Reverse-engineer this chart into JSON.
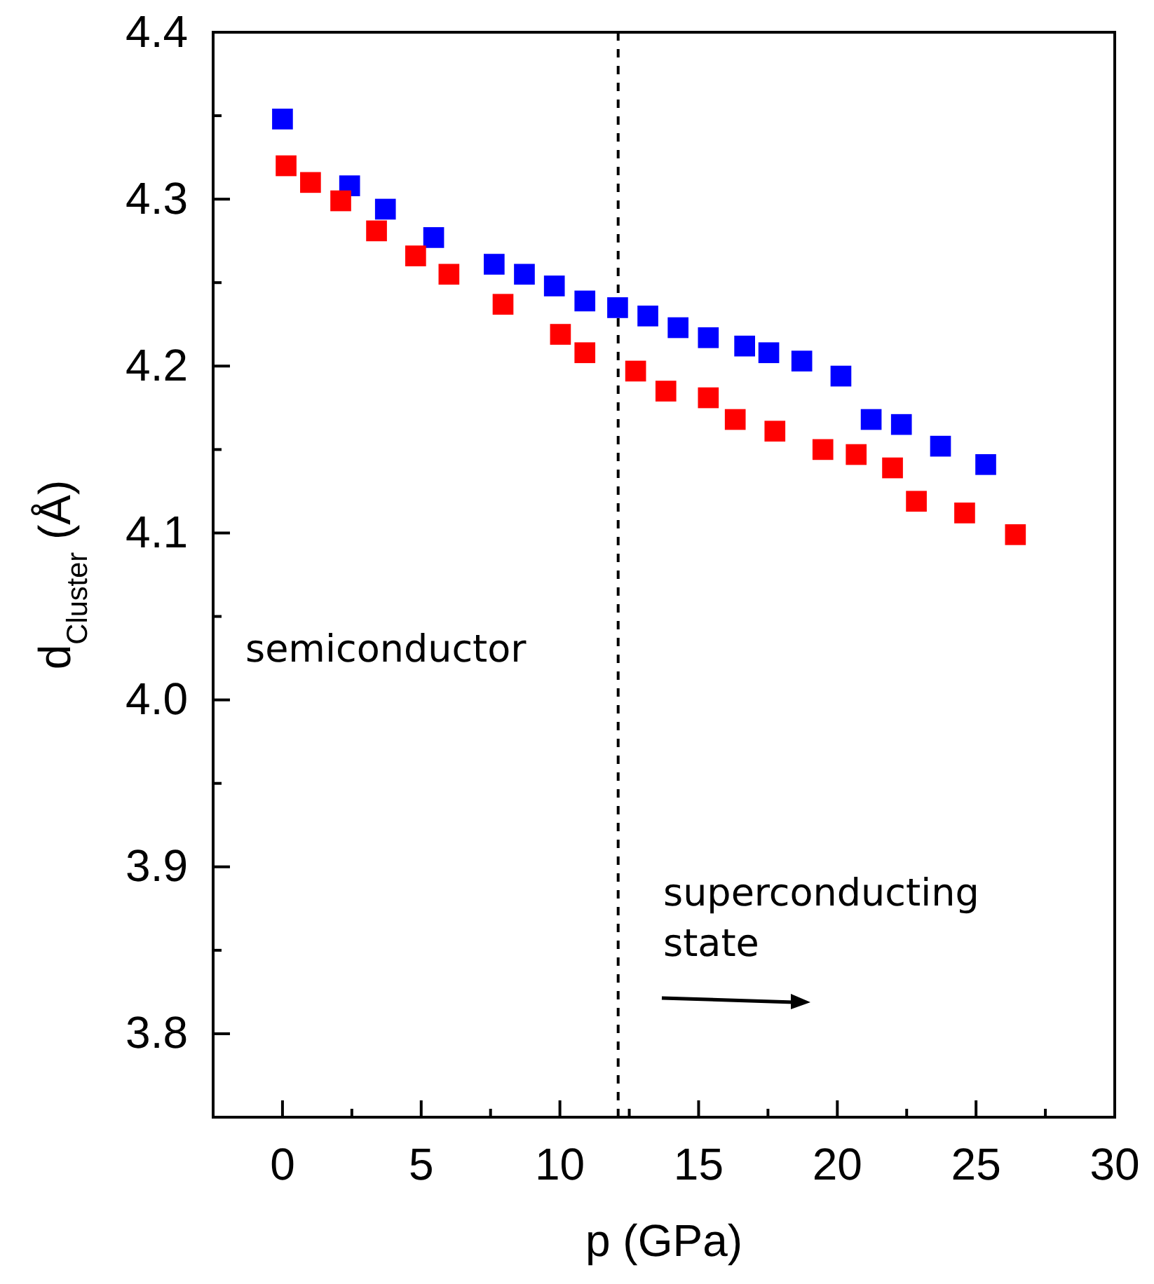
{
  "chart_data": {
    "type": "scatter",
    "xlabel": "p (GPa)",
    "ylabel": "d$_{Cluster}$ (Å)",
    "marker": "square",
    "grid": false,
    "xlim": [
      -2.5,
      30
    ],
    "xticks": [
      0,
      5,
      10,
      15,
      20,
      25,
      30
    ],
    "ylim": [
      3.75,
      4.4
    ],
    "yticks": [
      3.8,
      3.9,
      {
        "value": 4.0,
        "label": "4.0"
      },
      4.1,
      4.2,
      4.3,
      4.4
    ],
    "series": [
      {
        "color": "#0000ff",
        "x": [
          0.0,
          2.42,
          3.71,
          5.45,
          7.63,
          8.72,
          9.8,
          10.9,
          12.08,
          13.17,
          14.26,
          15.35,
          16.66,
          17.53,
          18.72,
          20.13,
          21.22,
          22.31,
          23.72,
          25.35
        ],
        "values": [
          4.348,
          4.308,
          4.294,
          4.277,
          4.261,
          4.255,
          4.248,
          4.239,
          4.235,
          4.23,
          4.223,
          4.217,
          4.212,
          4.208,
          4.203,
          4.194,
          4.168,
          4.165,
          4.152,
          4.141
        ]
      },
      {
        "color": "#ff0000",
        "x": [
          0.13,
          1.01,
          2.1,
          3.39,
          4.8,
          6.0,
          7.95,
          10.02,
          10.9,
          12.73,
          13.82,
          15.35,
          16.32,
          17.75,
          19.48,
          20.68,
          21.99,
          22.85,
          24.59,
          26.42
        ],
        "values": [
          4.32,
          4.31,
          4.299,
          4.281,
          4.266,
          4.255,
          4.237,
          4.219,
          4.208,
          4.197,
          4.185,
          4.181,
          4.168,
          4.161,
          4.15,
          4.147,
          4.139,
          4.119,
          4.112,
          4.099
        ]
      }
    ],
    "ref_lines": [
      {
        "axis": "x",
        "value": 12.1,
        "color": "#000000",
        "line_style": "dashed"
      }
    ],
    "annotations": [
      "semiconductor",
      "superconducting\nstate"
    ]
  }
}
